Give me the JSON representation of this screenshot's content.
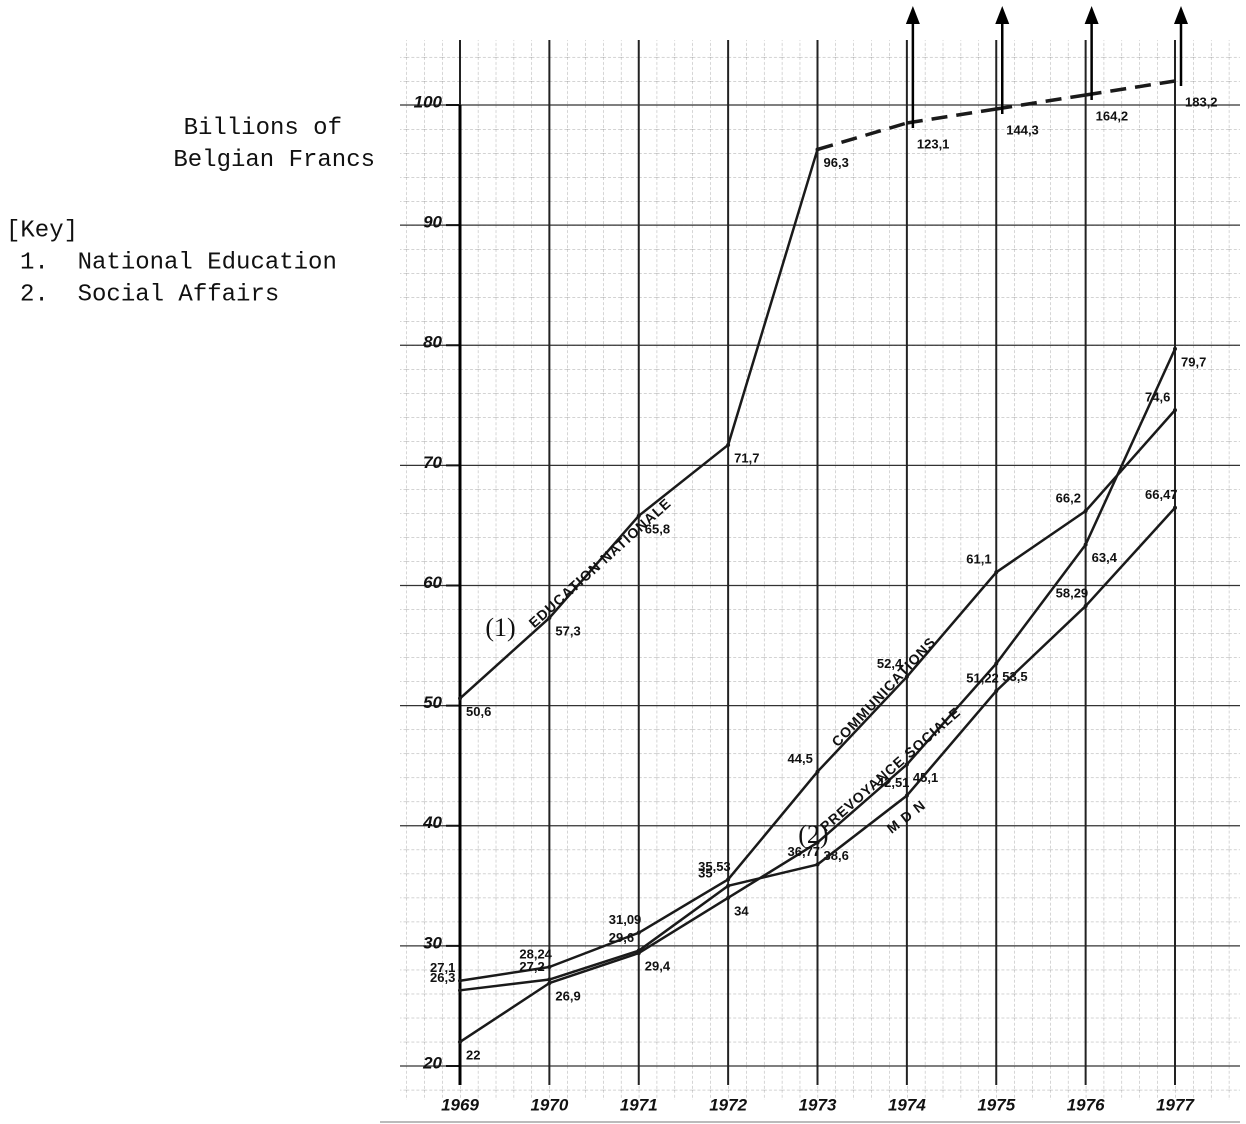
{
  "chart_data": {
    "type": "line",
    "axis_title": "Billions of Belgian Francs",
    "key_title": "[Key]",
    "key": [
      "1.  National Education",
      "2.  Social Affairs"
    ],
    "categories": [
      "1969",
      "1970",
      "1971",
      "1972",
      "1973",
      "1974",
      "1975",
      "1976",
      "1977"
    ],
    "ylim": [
      20,
      100
    ],
    "yticks": [
      20,
      30,
      40,
      50,
      60,
      70,
      80,
      90,
      100
    ],
    "grid": true,
    "series": [
      {
        "name": "EDUCATION NATIONALE",
        "key": "(1)",
        "color": "#1a1a1a",
        "values": [
          50.6,
          57.3,
          65.8,
          71.7,
          96.3,
          123.1,
          144.3,
          164.2,
          183.2
        ],
        "value_labels": [
          "50,6",
          "57,3",
          "65,8",
          "71,7",
          "96,3",
          "123,1",
          "144,3",
          "164,2",
          "183,2"
        ]
      },
      {
        "name": "COMMUNICATIONS",
        "color": "#1a1a1a",
        "values": [
          27.1,
          28.24,
          31.09,
          35.53,
          44.5,
          52.4,
          61.1,
          66.2,
          74.6
        ],
        "value_labels": [
          "27,1",
          "28,24",
          "31,09",
          "35,53",
          "44,5",
          "52,4",
          "61,1",
          "66,2",
          "74,6"
        ]
      },
      {
        "name": "PREVOYANCE SOCIALE",
        "key": "(2)",
        "color": "#1a1a1a",
        "values": [
          22,
          26.9,
          29.4,
          34,
          38.6,
          45.1,
          53.5,
          63.4,
          79.7
        ],
        "value_labels": [
          "22",
          "26,9",
          "29,4",
          "34",
          "38,6",
          "45,1",
          "53,5",
          "63,4",
          "79,7"
        ]
      },
      {
        "name": "M D N",
        "color": "#1a1a1a",
        "values": [
          26.3,
          27.2,
          29.6,
          35,
          36.77,
          42.51,
          51.22,
          58.29,
          66.47
        ],
        "value_labels": [
          "26,3",
          "27,2",
          "29,6",
          "35",
          "36,77",
          "42,51",
          "51,22",
          "58,29",
          "66,47"
        ]
      }
    ]
  }
}
